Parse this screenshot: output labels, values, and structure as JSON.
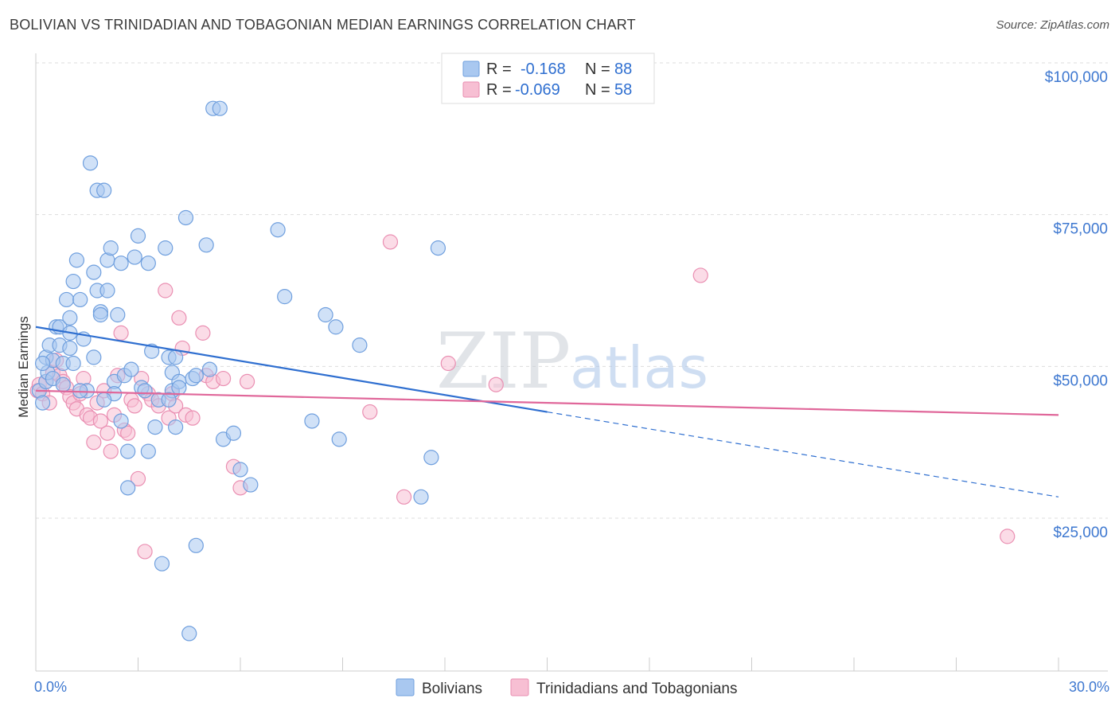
{
  "title": "BOLIVIAN VS TRINIDADIAN AND TOBAGONIAN MEDIAN EARNINGS CORRELATION CHART",
  "source": "Source: ZipAtlas.com",
  "watermark": {
    "zip": "ZIP",
    "atlas": "atlas"
  },
  "colors": {
    "bolivians_fill": "#a9c8f0",
    "bolivians_stroke": "#6f9fde",
    "bolivians_line": "#2f6fd0",
    "trini_fill": "#f7bfd3",
    "trini_stroke": "#ea8fb2",
    "trini_line": "#e0679a",
    "grid": "#dddddd",
    "axis_text": "#3e78d0"
  },
  "legend": {
    "rows": [
      {
        "r_label": "R =",
        "r_value": "-0.168",
        "n_label": "N =",
        "n_value": "88"
      },
      {
        "r_label": "R =",
        "r_value": "-0.069",
        "n_label": "N =",
        "n_value": "58"
      }
    ]
  },
  "bottom_legend": [
    "Bolivians",
    "Trinidadians and Tobagonians"
  ],
  "chart_data": {
    "type": "scatter",
    "title": "BOLIVIAN VS TRINIDADIAN AND TOBAGONIAN MEDIAN EARNINGS CORRELATION CHART",
    "xlabel": "",
    "ylabel": "Median Earnings",
    "xlim": [
      0,
      30
    ],
    "ylim": [
      0,
      105000
    ],
    "x_tick_labels": [
      "0.0%",
      "30.0%"
    ],
    "y_ticks": [
      25000,
      50000,
      75000,
      100000
    ],
    "y_tick_labels": [
      "$25,000",
      "$50,000",
      "$75,000",
      "$100,000"
    ],
    "grid": true,
    "series": [
      {
        "name": "Bolivians",
        "r": -0.168,
        "n": 88,
        "trend": {
          "x_start": 0,
          "y_start": 56500,
          "x_solid_end": 15,
          "y_solid_end": 42500,
          "x_end": 30,
          "y_end": 28500
        },
        "points": [
          [
            0.1,
            46000
          ],
          [
            0.2,
            44000
          ],
          [
            0.3,
            47500
          ],
          [
            0.3,
            51500
          ],
          [
            0.35,
            49000
          ],
          [
            0.4,
            53500
          ],
          [
            0.5,
            51000
          ],
          [
            0.5,
            48000
          ],
          [
            0.6,
            56500
          ],
          [
            0.7,
            56500
          ],
          [
            0.7,
            53500
          ],
          [
            0.8,
            50500
          ],
          [
            0.8,
            47000
          ],
          [
            0.9,
            61000
          ],
          [
            1.0,
            58000
          ],
          [
            1.0,
            53000
          ],
          [
            1.0,
            55500
          ],
          [
            1.1,
            64000
          ],
          [
            1.1,
            50500
          ],
          [
            1.2,
            67500
          ],
          [
            1.3,
            61000
          ],
          [
            1.4,
            54500
          ],
          [
            1.5,
            46000
          ],
          [
            1.6,
            83500
          ],
          [
            1.7,
            65500
          ],
          [
            1.7,
            51500
          ],
          [
            1.8,
            62500
          ],
          [
            1.8,
            79000
          ],
          [
            1.9,
            59000
          ],
          [
            1.9,
            58500
          ],
          [
            2.0,
            79000
          ],
          [
            2.1,
            62500
          ],
          [
            2.1,
            67500
          ],
          [
            2.2,
            69500
          ],
          [
            2.3,
            47500
          ],
          [
            2.3,
            45500
          ],
          [
            2.4,
            58500
          ],
          [
            2.5,
            67000
          ],
          [
            2.5,
            41000
          ],
          [
            2.6,
            48500
          ],
          [
            2.7,
            36000
          ],
          [
            2.7,
            30000
          ],
          [
            2.8,
            49500
          ],
          [
            2.9,
            68000
          ],
          [
            3.0,
            71500
          ],
          [
            3.1,
            46500
          ],
          [
            3.2,
            46000
          ],
          [
            3.3,
            36000
          ],
          [
            3.3,
            67000
          ],
          [
            3.4,
            52500
          ],
          [
            3.5,
            40000
          ],
          [
            3.6,
            44500
          ],
          [
            3.7,
            17500
          ],
          [
            3.8,
            69500
          ],
          [
            3.9,
            51500
          ],
          [
            4.0,
            46000
          ],
          [
            4.0,
            49000
          ],
          [
            4.1,
            40000
          ],
          [
            4.1,
            51500
          ],
          [
            4.2,
            47500
          ],
          [
            4.4,
            74500
          ],
          [
            4.5,
            6000
          ],
          [
            4.6,
            48000
          ],
          [
            4.7,
            20500
          ],
          [
            5.0,
            70000
          ],
          [
            5.1,
            49500
          ],
          [
            5.2,
            92500
          ],
          [
            5.4,
            92500
          ],
          [
            5.5,
            38000
          ],
          [
            5.8,
            39000
          ],
          [
            6.0,
            33000
          ],
          [
            6.3,
            30500
          ],
          [
            7.1,
            72500
          ],
          [
            7.3,
            61500
          ],
          [
            8.1,
            41000
          ],
          [
            8.5,
            58500
          ],
          [
            8.8,
            56500
          ],
          [
            8.9,
            38000
          ],
          [
            9.5,
            53500
          ],
          [
            11.3,
            28500
          ],
          [
            11.6,
            35000
          ],
          [
            11.8,
            69500
          ],
          [
            0.2,
            50500
          ],
          [
            1.3,
            46000
          ],
          [
            2.0,
            44500
          ],
          [
            3.9,
            44500
          ],
          [
            4.2,
            46500
          ],
          [
            4.7,
            48500
          ]
        ]
      },
      {
        "name": "Trinidadians and Tobagonians",
        "r": -0.069,
        "n": 58,
        "trend": {
          "x_start": 0,
          "y_start": 46000,
          "x_end": 30,
          "y_end": 42000
        },
        "points": [
          [
            0.05,
            46000
          ],
          [
            0.1,
            47000
          ],
          [
            0.2,
            45500
          ],
          [
            0.3,
            47500
          ],
          [
            0.4,
            44000
          ],
          [
            0.5,
            49000
          ],
          [
            0.6,
            51000
          ],
          [
            0.7,
            48500
          ],
          [
            0.8,
            47500
          ],
          [
            0.9,
            46500
          ],
          [
            1.0,
            45000
          ],
          [
            1.1,
            44000
          ],
          [
            1.2,
            43000
          ],
          [
            1.3,
            45500
          ],
          [
            1.4,
            48000
          ],
          [
            1.5,
            42000
          ],
          [
            1.6,
            41500
          ],
          [
            1.7,
            37500
          ],
          [
            1.8,
            44000
          ],
          [
            1.9,
            41000
          ],
          [
            2.0,
            46000
          ],
          [
            2.1,
            39000
          ],
          [
            2.2,
            36000
          ],
          [
            2.3,
            42000
          ],
          [
            2.4,
            48500
          ],
          [
            2.5,
            55500
          ],
          [
            2.6,
            39500
          ],
          [
            2.7,
            39000
          ],
          [
            2.8,
            44500
          ],
          [
            2.9,
            43500
          ],
          [
            3.0,
            31500
          ],
          [
            3.1,
            48000
          ],
          [
            3.2,
            19500
          ],
          [
            3.3,
            45500
          ],
          [
            3.4,
            44500
          ],
          [
            3.6,
            43500
          ],
          [
            3.8,
            62500
          ],
          [
            3.9,
            41500
          ],
          [
            4.0,
            45500
          ],
          [
            4.1,
            43500
          ],
          [
            4.2,
            58000
          ],
          [
            4.3,
            53000
          ],
          [
            4.4,
            42000
          ],
          [
            4.6,
            41500
          ],
          [
            4.9,
            55500
          ],
          [
            5.0,
            48500
          ],
          [
            5.2,
            47500
          ],
          [
            5.5,
            48000
          ],
          [
            6.0,
            30000
          ],
          [
            6.2,
            47500
          ],
          [
            9.8,
            42500
          ],
          [
            10.4,
            70500
          ],
          [
            10.8,
            28500
          ],
          [
            12.1,
            50500
          ],
          [
            13.5,
            47000
          ],
          [
            19.5,
            65000
          ],
          [
            28.5,
            22000
          ],
          [
            5.8,
            33500
          ]
        ]
      }
    ]
  }
}
